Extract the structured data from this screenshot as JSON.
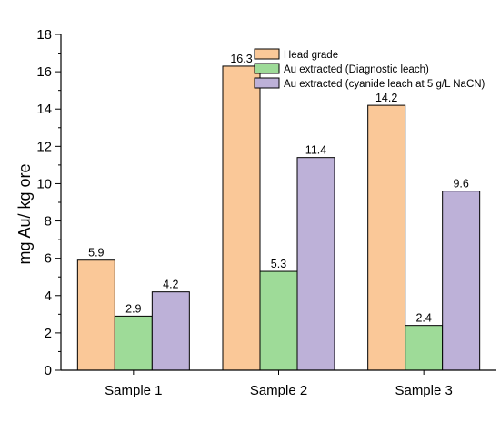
{
  "chart_data": {
    "type": "bar",
    "ylabel": "mg Au/ kg ore",
    "xlabel": "",
    "ylim": [
      0,
      18
    ],
    "yticks": [
      0,
      2,
      4,
      6,
      8,
      10,
      12,
      14,
      16,
      18
    ],
    "categories": [
      "Sample 1",
      "Sample 2",
      "Sample 3"
    ],
    "series": [
      {
        "name": "Head grade",
        "values": [
          5.9,
          16.3,
          14.2
        ],
        "labels": [
          "5.9",
          "16.3",
          "14.2"
        ],
        "color": "#FAC898"
      },
      {
        "name": "Au extracted (Diagnostic leach)",
        "values": [
          2.9,
          5.3,
          2.4
        ],
        "labels": [
          "2.9",
          "5.3",
          "2.4"
        ],
        "color": "#9EDB98"
      },
      {
        "name": "Au extracted (cyanide leach at 5 g/L NaCN)",
        "values": [
          4.2,
          11.4,
          9.6
        ],
        "labels": [
          "4.2",
          "11.4",
          "9.6"
        ],
        "color": "#BDB1D8"
      }
    ],
    "legend_position": "top-right",
    "grid": false
  }
}
